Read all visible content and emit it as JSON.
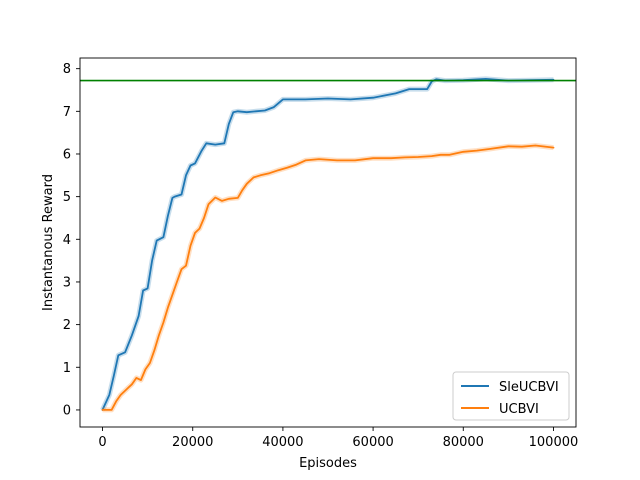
{
  "chart_data": {
    "type": "line",
    "xlabel": "Episodes",
    "ylabel": "Instantanous Reward",
    "xlim": [
      -5000,
      105000
    ],
    "ylim": [
      -0.4,
      8.25
    ],
    "xticks": [
      0,
      20000,
      40000,
      60000,
      80000,
      100000
    ],
    "xtick_labels": [
      "0",
      "20000",
      "40000",
      "60000",
      "80000",
      "100000"
    ],
    "yticks": [
      0,
      1,
      2,
      3,
      4,
      5,
      6,
      7,
      8
    ],
    "ytick_labels": [
      "0",
      "1",
      "2",
      "3",
      "4",
      "5",
      "6",
      "7",
      "8"
    ],
    "grid": false,
    "legend_position": "lower-right",
    "reference_line": {
      "y": 7.72,
      "color": "#008000"
    },
    "series": [
      {
        "name": "SleUCBVI",
        "color": "#1f77b4",
        "x": [
          0,
          1500,
          2500,
          3500,
          5000,
          6500,
          8000,
          9000,
          10000,
          11000,
          12000,
          13500,
          14500,
          15500,
          16000,
          17500,
          18500,
          19500,
          20500,
          22000,
          23000,
          25000,
          27000,
          28000,
          29000,
          30000,
          32000,
          34000,
          36000,
          38000,
          40000,
          45000,
          50000,
          55000,
          60000,
          65000,
          68000,
          72000,
          73000,
          74000,
          76000,
          80000,
          85000,
          90000,
          95000,
          100000
        ],
        "y": [
          0.0,
          0.35,
          0.8,
          1.28,
          1.35,
          1.75,
          2.2,
          2.8,
          2.85,
          3.5,
          3.97,
          4.05,
          4.55,
          4.97,
          5.0,
          5.05,
          5.5,
          5.73,
          5.78,
          6.08,
          6.25,
          6.22,
          6.25,
          6.7,
          6.98,
          7.0,
          6.98,
          7.0,
          7.02,
          7.1,
          7.28,
          7.28,
          7.3,
          7.28,
          7.32,
          7.42,
          7.52,
          7.52,
          7.7,
          7.75,
          7.72,
          7.73,
          7.76,
          7.72,
          7.73,
          7.74
        ]
      },
      {
        "name": "UCBVI",
        "color": "#ff7f0e",
        "x": [
          0,
          2000,
          3000,
          4000,
          5500,
          6500,
          7500,
          8500,
          9500,
          10500,
          11500,
          12500,
          13500,
          14500,
          15500,
          16500,
          17500,
          18500,
          19500,
          20500,
          21500,
          22500,
          23500,
          25000,
          26500,
          28000,
          30000,
          31000,
          32000,
          33500,
          35000,
          37000,
          39000,
          41000,
          43000,
          45000,
          48000,
          52000,
          56000,
          60000,
          64000,
          67000,
          70000,
          73000,
          75000,
          77000,
          80000,
          83000,
          86000,
          90000,
          93000,
          96000,
          100000
        ],
        "y": [
          0.0,
          0.0,
          0.2,
          0.35,
          0.5,
          0.6,
          0.75,
          0.7,
          0.95,
          1.1,
          1.4,
          1.75,
          2.05,
          2.4,
          2.7,
          3.0,
          3.3,
          3.38,
          3.85,
          4.15,
          4.25,
          4.5,
          4.82,
          4.98,
          4.9,
          4.95,
          4.97,
          5.15,
          5.3,
          5.45,
          5.5,
          5.55,
          5.62,
          5.68,
          5.75,
          5.85,
          5.88,
          5.85,
          5.85,
          5.9,
          5.9,
          5.92,
          5.93,
          5.95,
          5.98,
          5.98,
          6.05,
          6.08,
          6.12,
          6.18,
          6.17,
          6.2,
          6.15
        ]
      }
    ]
  }
}
